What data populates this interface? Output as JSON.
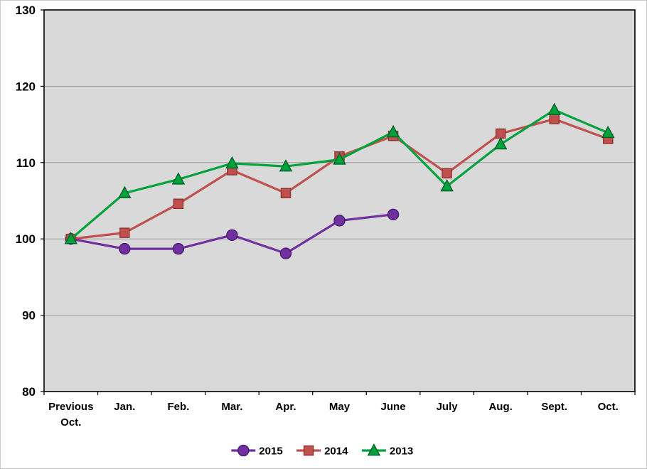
{
  "chart_data": {
    "type": "line",
    "title": "",
    "xlabel": "",
    "ylabel": "",
    "categories": [
      "Previous Oct.",
      "Jan.",
      "Feb.",
      "Mar.",
      "Apr.",
      "May",
      "June",
      "July",
      "Aug.",
      "Sept.",
      "Oct."
    ],
    "series": [
      {
        "name": "2015",
        "marker": "circle",
        "color": "#7030a0",
        "marker_border": "#4d1f73",
        "values": [
          100.0,
          98.7,
          98.7,
          100.5,
          98.1,
          102.4,
          103.2,
          null,
          null,
          null,
          null
        ]
      },
      {
        "name": "2014",
        "marker": "square",
        "color": "#c0504d",
        "marker_border": "#943634",
        "values": [
          100.0,
          100.8,
          104.6,
          109.0,
          106.0,
          110.8,
          113.5,
          108.6,
          113.8,
          115.7,
          113.1
        ]
      },
      {
        "name": "2013",
        "marker": "triangle",
        "color": "#00a23c",
        "marker_border": "#006629",
        "values": [
          100.0,
          106.0,
          107.8,
          109.9,
          109.5,
          110.4,
          114.0,
          106.9,
          112.4,
          116.9,
          113.9
        ]
      }
    ],
    "ylim": [
      80,
      130
    ],
    "ytick_step": 10,
    "yticks": [
      80,
      90,
      100,
      110,
      120,
      130
    ],
    "grid": true,
    "grid_color": "#9e9e9e",
    "plot_bg": "#d9d9d9",
    "plot_border_color": "#000000",
    "axis_text_color": "#000000",
    "legend_position": "bottom",
    "legend_labels": [
      "2015",
      "2014",
      "2013"
    ]
  }
}
